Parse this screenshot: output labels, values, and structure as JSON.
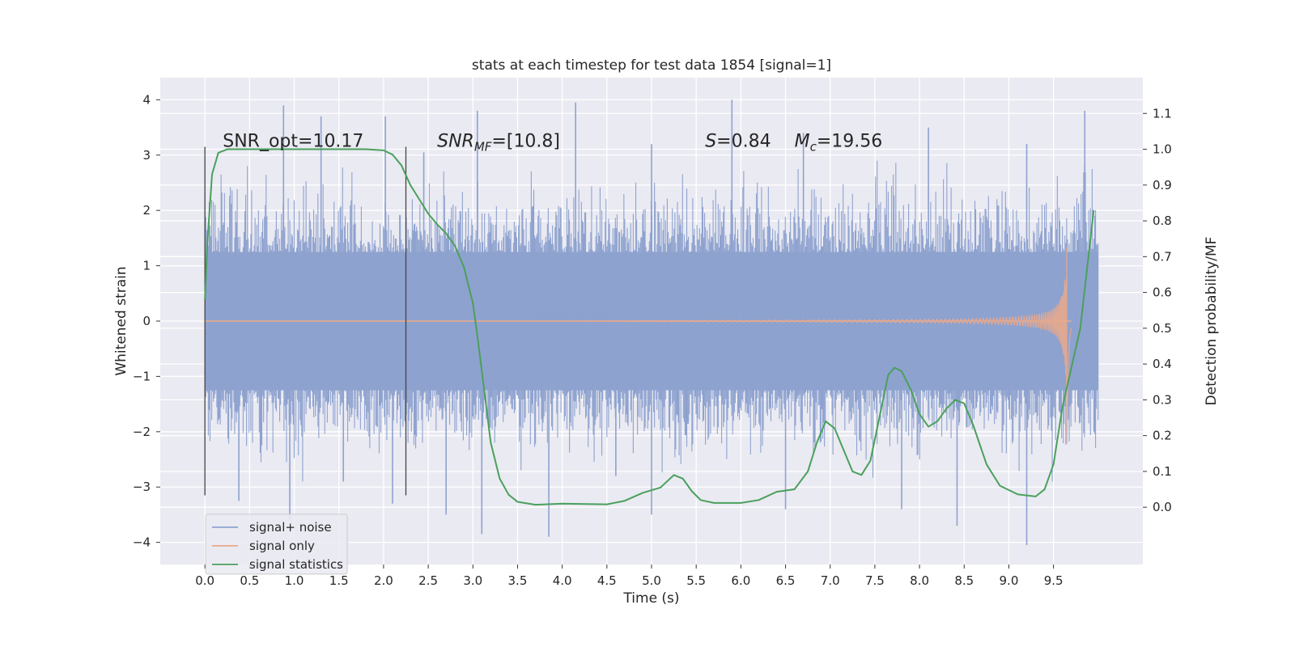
{
  "chart_data": {
    "type": "line",
    "title": "stats at each timestep for test data 1854 [signal=1]",
    "xlabel": "Time (s)",
    "ylabel": "Whitened strain",
    "y2label": "Detection probability/MF",
    "xlim": [
      -0.5,
      10.5
    ],
    "ylim": [
      -4.4,
      4.4
    ],
    "y2lim": [
      -0.16,
      1.2
    ],
    "xticks": [
      0.0,
      0.5,
      1.0,
      1.5,
      2.0,
      2.5,
      3.0,
      3.5,
      4.0,
      4.5,
      5.0,
      5.5,
      6.0,
      6.5,
      7.0,
      7.5,
      8.0,
      8.5,
      9.0,
      9.5
    ],
    "xtick_labels": [
      "0.0",
      "0.5",
      "1.0",
      "1.5",
      "2.0",
      "2.5",
      "3.0",
      "3.5",
      "4.0",
      "4.5",
      "5.0",
      "5.5",
      "6.0",
      "6.5",
      "7.0",
      "7.5",
      "8.0",
      "8.5",
      "9.0",
      "9.5"
    ],
    "yticks": [
      -4,
      -3,
      -2,
      -1,
      0,
      1,
      2,
      3,
      4
    ],
    "ytick_labels": [
      "−4",
      "−3",
      "−2",
      "−1",
      "0",
      "1",
      "2",
      "3",
      "4"
    ],
    "y2ticks": [
      0.0,
      0.1,
      0.2,
      0.3,
      0.4,
      0.5,
      0.6,
      0.7,
      0.8,
      0.9,
      1.0,
      1.1
    ],
    "y2tick_labels": [
      "0.0",
      "0.1",
      "0.2",
      "0.3",
      "0.4",
      "0.5",
      "0.6",
      "0.7",
      "0.8",
      "0.9",
      "1.0",
      "1.1"
    ],
    "grid": true,
    "legend": {
      "placement": "lower-left",
      "entries": [
        {
          "label": "signal+ noise",
          "color": "#8ea2cf"
        },
        {
          "label": "signal only",
          "color": "#e8a98c"
        },
        {
          "label": "signal statistics",
          "color": "#4aa05c"
        }
      ]
    },
    "annotations": {
      "snr_opt": "SNR_opt=10.17",
      "snr_mf_sym": "SNR",
      "snr_mf_sub": "MF",
      "snr_mf_val": "=[10.8]",
      "s_sym": "S",
      "s_val": "=0.84",
      "mc_sym": "M",
      "mc_sub": "c",
      "mc_val": "=19.56"
    },
    "vertical_markers": {
      "x": [
        0.0,
        2.25
      ],
      "ymin": -3.15,
      "ymax": 3.15
    },
    "noise_series": {
      "name": "signal+ noise",
      "x_range": [
        0.0,
        10.0
      ],
      "core_band": [
        -1.25,
        1.25
      ],
      "typical_band": [
        -1.9,
        1.9
      ],
      "spikes": [
        [
          0.88,
          3.9
        ],
        [
          1.3,
          3.7
        ],
        [
          2.02,
          3.7
        ],
        [
          2.45,
          3.05
        ],
        [
          3.05,
          3.8
        ],
        [
          4.15,
          3.95
        ],
        [
          5.0,
          3.2
        ],
        [
          5.9,
          4.0
        ],
        [
          6.7,
          3.4
        ],
        [
          8.1,
          3.5
        ],
        [
          9.2,
          3.2
        ],
        [
          9.85,
          3.8
        ],
        [
          0.95,
          -3.6
        ],
        [
          0.38,
          -3.25
        ],
        [
          2.1,
          -3.3
        ],
        [
          2.7,
          -3.5
        ],
        [
          3.1,
          -3.85
        ],
        [
          3.85,
          -3.9
        ],
        [
          6.5,
          -3.4
        ],
        [
          7.8,
          -3.4
        ],
        [
          8.42,
          -3.7
        ],
        [
          9.2,
          -4.05
        ],
        [
          5.0,
          -3.5
        ],
        [
          1.55,
          -2.9
        ],
        [
          4.6,
          -2.8
        ]
      ]
    },
    "signal_only_series": {
      "name": "signal only",
      "chirp_start": 5.0,
      "merger_time": 9.65,
      "peak_amplitude": 2.25,
      "end_time": 9.7
    },
    "statistics_series": {
      "name": "signal statistics",
      "x": [
        0.0,
        0.03,
        0.08,
        0.15,
        0.25,
        0.5,
        1.0,
        1.5,
        1.8,
        2.0,
        2.1,
        2.2,
        2.3,
        2.4,
        2.5,
        2.6,
        2.7,
        2.8,
        2.9,
        3.0,
        3.05,
        3.1,
        3.15,
        3.2,
        3.3,
        3.4,
        3.5,
        3.7,
        4.0,
        4.5,
        4.7,
        4.9,
        5.1,
        5.25,
        5.35,
        5.45,
        5.55,
        5.7,
        6.0,
        6.2,
        6.4,
        6.6,
        6.75,
        6.85,
        6.95,
        7.05,
        7.15,
        7.25,
        7.35,
        7.45,
        7.55,
        7.65,
        7.72,
        7.8,
        7.9,
        8.0,
        8.1,
        8.2,
        8.3,
        8.4,
        8.5,
        8.6,
        8.75,
        8.9,
        9.1,
        9.3,
        9.4,
        9.5,
        9.6,
        9.7,
        9.8,
        9.9,
        9.95
      ],
      "y": [
        0.58,
        0.75,
        0.93,
        0.99,
        1.0,
        1.0,
        1.0,
        1.0,
        1.0,
        0.997,
        0.985,
        0.955,
        0.9,
        0.86,
        0.82,
        0.79,
        0.765,
        0.73,
        0.67,
        0.57,
        0.48,
        0.38,
        0.28,
        0.18,
        0.08,
        0.035,
        0.015,
        0.007,
        0.01,
        0.008,
        0.018,
        0.04,
        0.055,
        0.09,
        0.08,
        0.045,
        0.02,
        0.012,
        0.012,
        0.02,
        0.043,
        0.05,
        0.1,
        0.18,
        0.24,
        0.22,
        0.16,
        0.1,
        0.09,
        0.13,
        0.25,
        0.37,
        0.39,
        0.38,
        0.33,
        0.26,
        0.225,
        0.24,
        0.275,
        0.3,
        0.29,
        0.23,
        0.12,
        0.06,
        0.036,
        0.03,
        0.05,
        0.12,
        0.28,
        0.39,
        0.5,
        0.72,
        0.83
      ]
    }
  }
}
